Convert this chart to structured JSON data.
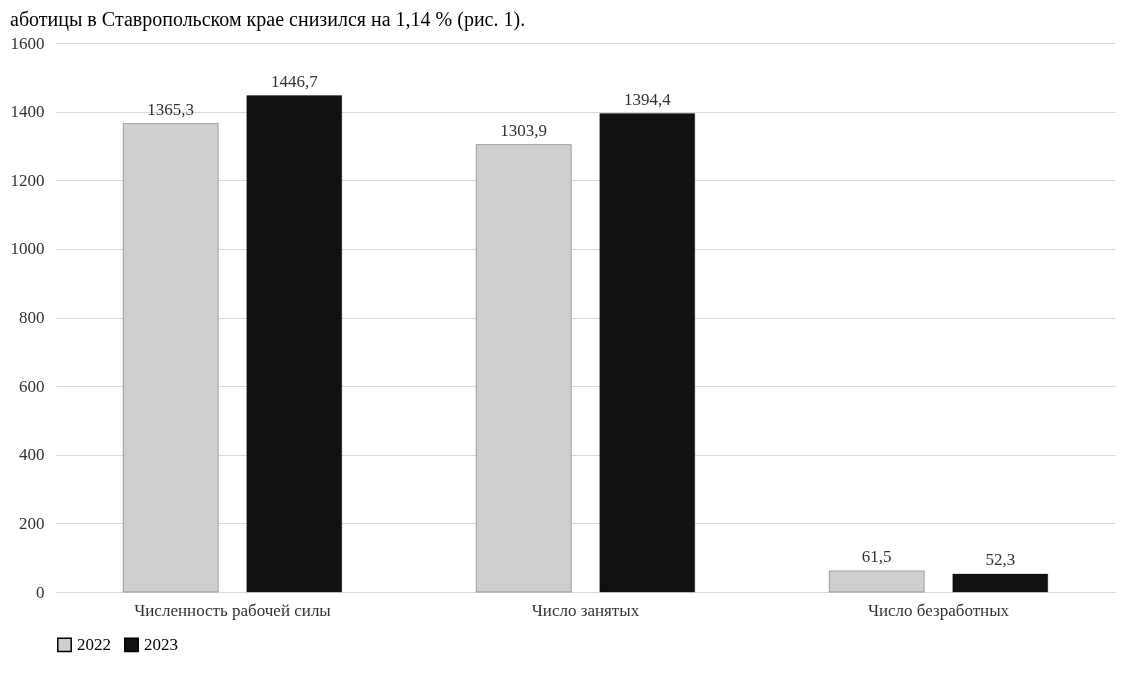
{
  "chart_data": {
    "type": "bar",
    "annotations": [
      "аботицы в Ставропольском крае снизился на 1,14 % (рис. 1)."
    ],
    "categories": [
      "Численность рабочей силы",
      "Число занятых",
      "Число безработных"
    ],
    "series": [
      {
        "name": "2022",
        "color": "#cfcfcf",
        "values": [
          1365.3,
          1303.9,
          61.5
        ]
      },
      {
        "name": "2023",
        "color": "#111111",
        "values": [
          1446.7,
          1394.4,
          52.3
        ]
      }
    ],
    "value_labels": [
      [
        "1365,3",
        "1303,9",
        "61,5"
      ],
      [
        "1446,7",
        "1394,4",
        "52,3"
      ]
    ],
    "ylim": [
      0,
      1600
    ],
    "yticks": [
      0,
      200,
      400,
      600,
      800,
      1000,
      1200,
      1400,
      1600
    ],
    "grid": "y",
    "legend": "bottom"
  }
}
